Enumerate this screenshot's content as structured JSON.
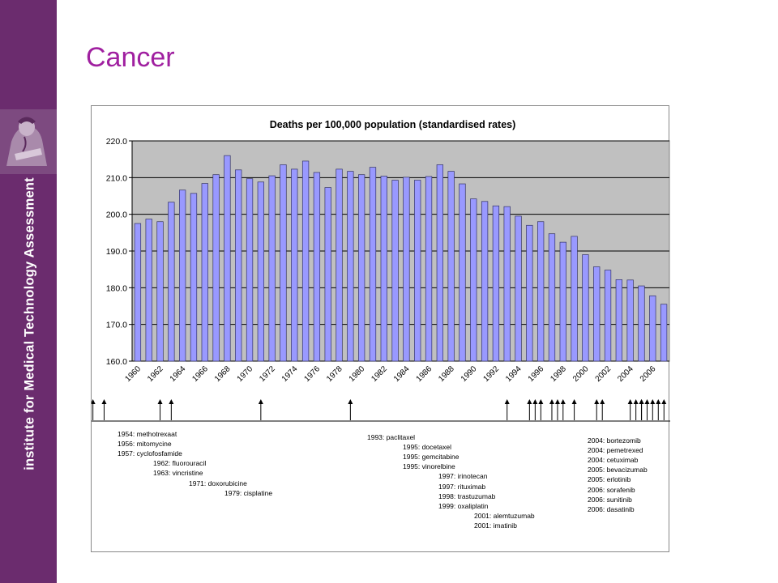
{
  "slide": {
    "title": "Cancer",
    "sidebar_text": "institute for Medical Technology Assessment",
    "sidebar_color": "#6b2c6e",
    "title_color": "#a020a0"
  },
  "chart_data": {
    "type": "bar",
    "title": "Deaths per 100,000 population (standardised rates)",
    "xlabel": "",
    "ylabel": "",
    "ylim": [
      160,
      220
    ],
    "yticks": [
      "160.0",
      "170.0",
      "180.0",
      "190.0",
      "200.0",
      "210.0",
      "220.0"
    ],
    "grid": true,
    "plot_background": "#c0c0c0",
    "bar_color": "#9999ff",
    "bar_edge_color": "#333366",
    "categories": [
      1960,
      1961,
      1962,
      1963,
      1964,
      1965,
      1966,
      1967,
      1968,
      1969,
      1970,
      1971,
      1972,
      1973,
      1974,
      1975,
      1976,
      1977,
      1978,
      1979,
      1980,
      1981,
      1982,
      1983,
      1984,
      1985,
      1986,
      1987,
      1988,
      1989,
      1990,
      1991,
      1992,
      1993,
      1994,
      1995,
      1996,
      1997,
      1998,
      1999,
      2000,
      2001,
      2002,
      2003,
      2004,
      2005,
      2006,
      2007
    ],
    "x_tick_labels": [
      "1960",
      "1962",
      "1964",
      "1966",
      "1968",
      "1970",
      "1972",
      "1974",
      "1976",
      "1978",
      "1980",
      "1982",
      "1984",
      "1986",
      "1988",
      "1990",
      "1992",
      "1994",
      "1996",
      "1998",
      "2000",
      "2002",
      "2004",
      "2006"
    ],
    "values": [
      197.5,
      198.7,
      198.0,
      203.3,
      206.6,
      205.7,
      208.4,
      210.8,
      216.0,
      212.1,
      209.7,
      208.8,
      210.5,
      213.5,
      212.3,
      214.5,
      211.4,
      207.3,
      212.3,
      211.7,
      210.8,
      212.8,
      210.4,
      209.3,
      210.1,
      209.3,
      210.3,
      213.5,
      211.7,
      208.3,
      204.2,
      203.5,
      202.3,
      202.1,
      199.5,
      197.0,
      198.0,
      194.7,
      192.4,
      194.0,
      189.0,
      185.7,
      184.8,
      182.2,
      182.1,
      180.5,
      177.8,
      175.5
    ],
    "drug_introductions": [
      {
        "year": 1954,
        "drug": "methotrexaat",
        "label": "1954: methotrexaat"
      },
      {
        "year": 1956,
        "drug": "mitomycine",
        "label": "1956: mitomycine"
      },
      {
        "year": 1957,
        "drug": "cyclofosfamide",
        "label": "1957: cyclofosfamide"
      },
      {
        "year": 1962,
        "drug": "fluorouracil",
        "label": "1962: fluorouracil"
      },
      {
        "year": 1963,
        "drug": "vincristine",
        "label": "1963: vincristine"
      },
      {
        "year": 1971,
        "drug": "doxorubicine",
        "label": "1971: doxorubicine"
      },
      {
        "year": 1979,
        "drug": "cisplatine",
        "label": "1979: cisplatine"
      },
      {
        "year": 1993,
        "drug": "paclitaxel",
        "label": "1993: paclitaxel"
      },
      {
        "year": 1995,
        "drug": "docetaxel",
        "label": "1995: docetaxel"
      },
      {
        "year": 1995,
        "drug": "gemcitabine",
        "label": "1995: gemcitabine"
      },
      {
        "year": 1995,
        "drug": "vinorelbine",
        "label": "1995: vinorelbine"
      },
      {
        "year": 1997,
        "drug": "irinotecan",
        "label": "1997: irinotecan"
      },
      {
        "year": 1997,
        "drug": "rituximab",
        "label": "1997: rituximab"
      },
      {
        "year": 1998,
        "drug": "trastuzumab",
        "label": "1998: trastuzumab"
      },
      {
        "year": 1999,
        "drug": "oxaliplatin",
        "label": "1999: oxaliplatin"
      },
      {
        "year": 2001,
        "drug": "alemtuzumab",
        "label": "2001: alemtuzumab"
      },
      {
        "year": 2001,
        "drug": "imatinib",
        "label": "2001: imatinib"
      },
      {
        "year": 2004,
        "drug": "bortezomib",
        "label": "2004: bortezomib"
      },
      {
        "year": 2004,
        "drug": "pemetrexed",
        "label": "2004: pemetrexed"
      },
      {
        "year": 2004,
        "drug": "cetuximab",
        "label": "2004: cetuximab"
      },
      {
        "year": 2005,
        "drug": "bevacizumab",
        "label": "2005: bevacizumab"
      },
      {
        "year": 2005,
        "drug": "erlotinib",
        "label": "2005: erlotinib"
      },
      {
        "year": 2006,
        "drug": "sorafenib",
        "label": "2006: sorafenib"
      },
      {
        "year": 2006,
        "drug": "sunitinib",
        "label": "2006: sunitinib"
      },
      {
        "year": 2006,
        "drug": "dasatinib",
        "label": "2006: dasatinib"
      }
    ]
  }
}
